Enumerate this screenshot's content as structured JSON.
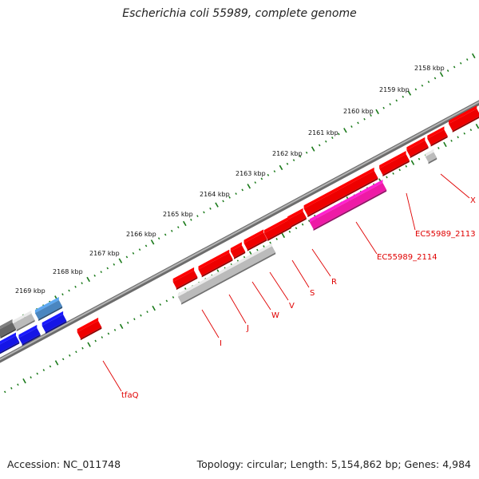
{
  "title": "Escherichia coli 55989, complete genome",
  "footer": {
    "accession": "Accession: NC_011748",
    "summary": "Topology: circular; Length: 5,154,862 bp; Genes: 4,984"
  },
  "colors": {
    "label": "#e00000",
    "tick_dots": "#1a7a1a",
    "backbone": "#808080",
    "gene_red": "#ee0000",
    "gene_magenta": "#ee1aa6",
    "gene_gray": "#bbbbbb",
    "gene_blue": "#1515e6",
    "gene_steelblue": "#4a86c0",
    "gene_darkgray": "#666666"
  },
  "scale_labels": [
    "2158 kbp",
    "2159 kbp",
    "2160 kbp",
    "2161 kbp",
    "2162 kbp",
    "2163 kbp",
    "2164 kbp",
    "2165 kbp",
    "2166 kbp",
    "2167 kbp",
    "2168 kbp",
    "2169 kbp"
  ],
  "gene_labels": [
    "X",
    "EC55989_2113",
    "EC55989_2114",
    "R",
    "S",
    "V",
    "W",
    "J",
    "I",
    "tfaQ"
  ]
}
